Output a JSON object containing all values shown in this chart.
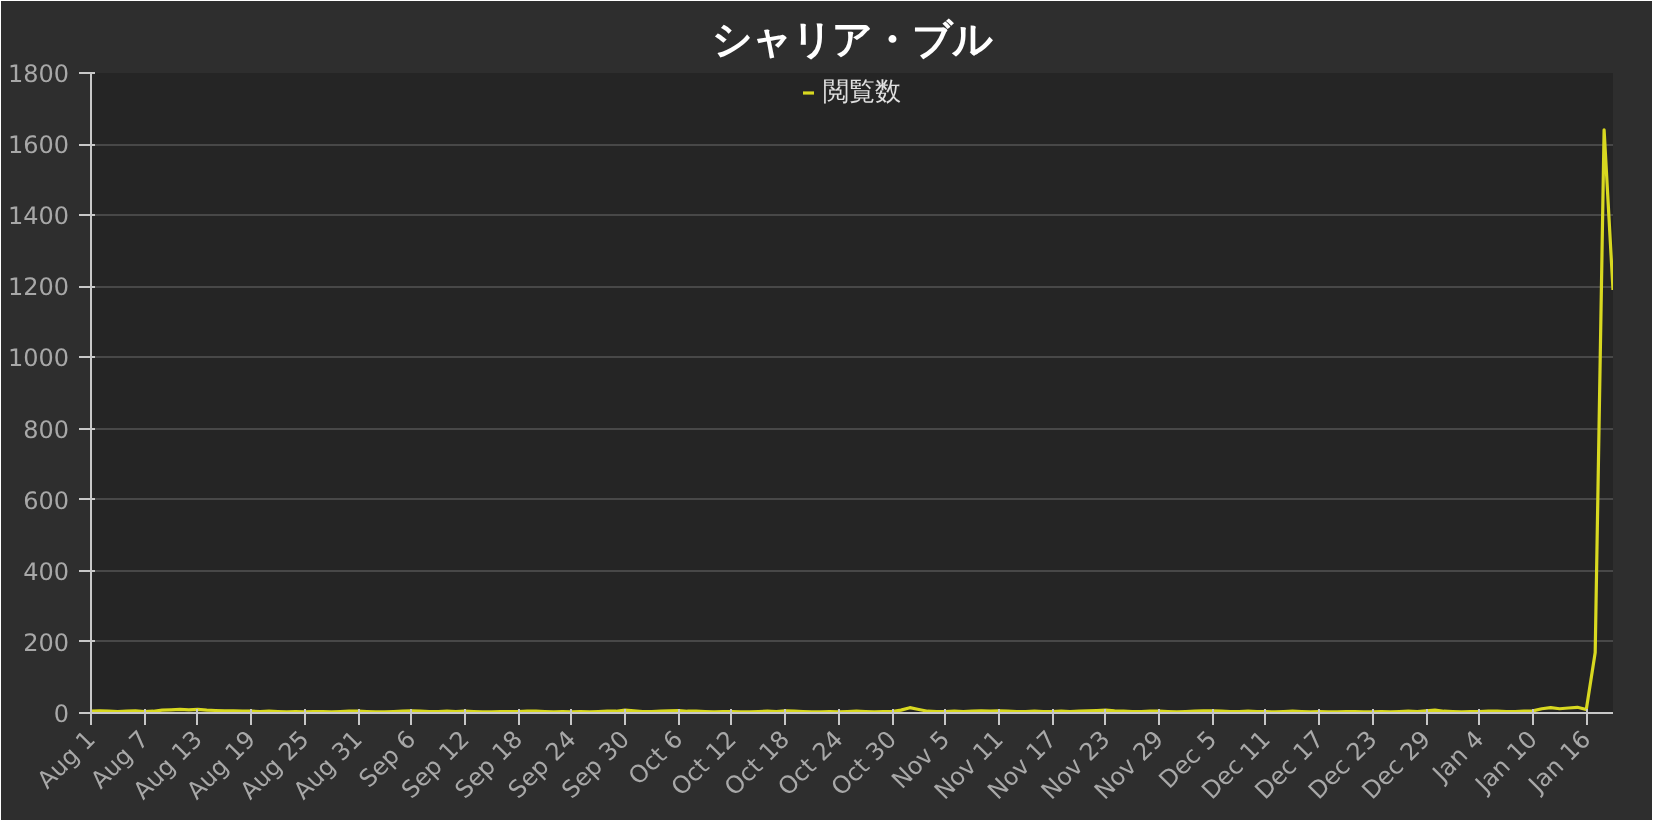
{
  "chart_data": {
    "type": "line",
    "title": "シャリア・ブル",
    "legend": "top",
    "grid": "y",
    "line_style": "solid",
    "categories": [
      "Aug 1",
      null,
      null,
      null,
      null,
      null,
      "Aug 7",
      null,
      null,
      null,
      null,
      null,
      "Aug 13",
      null,
      null,
      null,
      null,
      null,
      "Aug 19",
      null,
      null,
      null,
      null,
      null,
      "Aug 25",
      null,
      null,
      null,
      null,
      null,
      "Aug 31",
      null,
      null,
      null,
      null,
      null,
      "Sep 6",
      null,
      null,
      null,
      null,
      null,
      "Sep 12",
      null,
      null,
      null,
      null,
      null,
      "Sep 18",
      null,
      null,
      null,
      null,
      null,
      "Sep 24",
      null,
      null,
      null,
      null,
      null,
      "Sep 30",
      null,
      null,
      null,
      null,
      null,
      "Oct 6",
      null,
      null,
      null,
      null,
      null,
      "Oct 12",
      null,
      null,
      null,
      null,
      null,
      "Oct 18",
      null,
      null,
      null,
      null,
      null,
      "Oct 24",
      null,
      null,
      null,
      null,
      null,
      "Oct 30",
      null,
      null,
      null,
      null,
      null,
      "Nov 5",
      null,
      null,
      null,
      null,
      null,
      "Nov 11",
      null,
      null,
      null,
      null,
      null,
      "Nov 17",
      null,
      null,
      null,
      null,
      null,
      "Nov 23",
      null,
      null,
      null,
      null,
      null,
      "Nov 29",
      null,
      null,
      null,
      null,
      null,
      "Dec 5",
      null,
      null,
      null,
      null,
      null,
      "Dec 11",
      null,
      null,
      null,
      null,
      null,
      "Dec 17",
      null,
      null,
      null,
      null,
      null,
      "Dec 23",
      null,
      null,
      null,
      null,
      null,
      "Dec 29",
      null,
      null,
      null,
      null,
      null,
      "Jan 4",
      null,
      null,
      null,
      null,
      null,
      "Jan 10",
      null,
      null,
      null,
      null,
      null,
      "Jan 16",
      null,
      null,
      null
    ],
    "series": [
      {
        "name": "閲覧数",
        "color": "#d8d820",
        "values": [
          5,
          6,
          5,
          4,
          5,
          6,
          4,
          5,
          8,
          9,
          10,
          9,
          10,
          8,
          7,
          6,
          6,
          5,
          5,
          4,
          5,
          4,
          3,
          4,
          3,
          4,
          4,
          3,
          4,
          5,
          5,
          4,
          3,
          3,
          4,
          5,
          6,
          5,
          4,
          4,
          5,
          4,
          5,
          4,
          3,
          3,
          4,
          4,
          4,
          5,
          5,
          4,
          3,
          4,
          3,
          4,
          3,
          4,
          5,
          5,
          8,
          6,
          4,
          4,
          5,
          6,
          7,
          5,
          5,
          4,
          3,
          4,
          4,
          3,
          3,
          4,
          5,
          4,
          6,
          5,
          4,
          3,
          3,
          4,
          3,
          4,
          5,
          4,
          3,
          4,
          4,
          8,
          15,
          10,
          5,
          4,
          4,
          5,
          4,
          5,
          6,
          5,
          6,
          5,
          4,
          4,
          5,
          4,
          4,
          5,
          4,
          5,
          6,
          7,
          8,
          6,
          5,
          4,
          4,
          5,
          5,
          4,
          3,
          4,
          5,
          6,
          6,
          5,
          4,
          4,
          5,
          4,
          4,
          3,
          4,
          5,
          4,
          3,
          4,
          3,
          3,
          4,
          4,
          3,
          3,
          4,
          3,
          4,
          5,
          4,
          6,
          8,
          5,
          4,
          3,
          4,
          4,
          5,
          5,
          4,
          4,
          5,
          6,
          12,
          15,
          12,
          14,
          16,
          10,
          170,
          1640,
          1190
        ]
      }
    ],
    "ylim": [
      0,
      1800
    ],
    "yticks": [
      0,
      200,
      400,
      600,
      800,
      1000,
      1200,
      1400,
      1600,
      1800
    ]
  }
}
